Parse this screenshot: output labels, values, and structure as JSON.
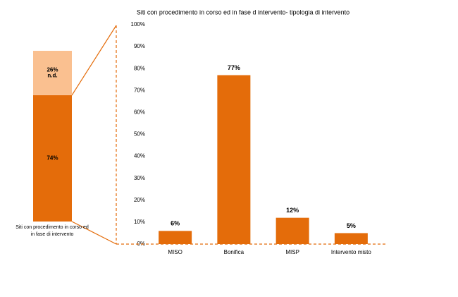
{
  "chart_data": [
    {
      "type": "stacked_bar",
      "categories": [
        "Siti con procedimento in corso ed in fase di intervento"
      ],
      "series": [
        {
          "color": "#e46c0a",
          "values": [
            74
          ],
          "value_labels": [
            "74%"
          ]
        },
        {
          "name": "n.d.",
          "color": "#fac090",
          "values": [
            26
          ],
          "value_labels": [
            "26%"
          ]
        }
      ],
      "ylim": [
        0,
        100
      ]
    },
    {
      "type": "bar",
      "title": "Siti  con procedimento in corso ed in fase d intervento- tipologia di intervento",
      "categories": [
        "MISO",
        "Bonifica",
        "MISP",
        "Intervento misto"
      ],
      "values": [
        6,
        77,
        12,
        5
      ],
      "value_labels": [
        "6%",
        "77%",
        "12%",
        "5%"
      ],
      "color": "#e46c0a",
      "ylim": [
        0,
        100
      ],
      "yticks": [
        {
          "value": 0,
          "label": "0%"
        },
        {
          "value": 10,
          "label": "10%"
        },
        {
          "value": 20,
          "label": "20%"
        },
        {
          "value": 30,
          "label": "30%"
        },
        {
          "value": 40,
          "label": "40%"
        },
        {
          "value": 50,
          "label": "50%"
        },
        {
          "value": 60,
          "label": "60%"
        },
        {
          "value": 70,
          "label": "70%"
        },
        {
          "value": 80,
          "label": "80%"
        },
        {
          "value": 90,
          "label": "90%"
        },
        {
          "value": 100,
          "label": "100%"
        }
      ],
      "grid": false
    }
  ]
}
